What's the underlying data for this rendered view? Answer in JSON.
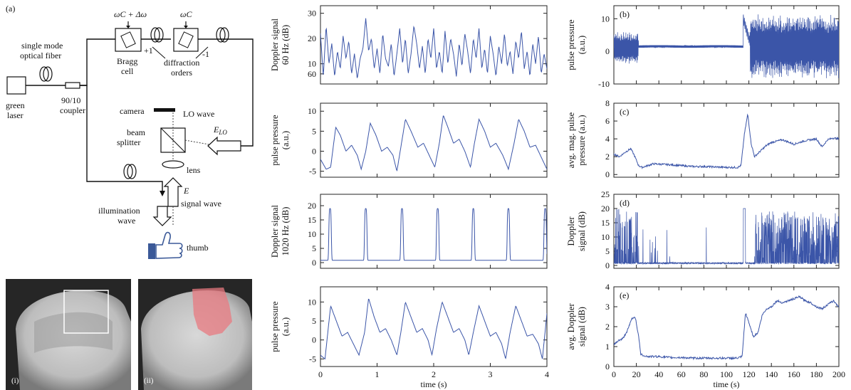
{
  "figure": {
    "diagram": {
      "label": "(a)",
      "components": {
        "fiber_label_1": "single mode",
        "fiber_label_2": "optical fiber",
        "laser_1": "green",
        "laser_2": "laser",
        "coupler_1": "90/10",
        "coupler_2": "coupler",
        "bragg_1": "Bragg",
        "bragg_2": "cell",
        "diff_1": "diffraction",
        "diff_2": "orders",
        "plus1": "+1",
        "minus1": "-1",
        "omega_shift": "ωC + Δω",
        "omega": "ωC",
        "camera": "camera",
        "lo_wave": "LO wave",
        "beam_1": "beam",
        "beam_2": "splitter",
        "e_lo": "ELO",
        "lens": "lens",
        "e": "E",
        "signal_wave": "signal wave",
        "illum_1": "illumination",
        "illum_2": "wave",
        "thumb": "thumb"
      }
    },
    "photos": [
      {
        "label": "(i)"
      },
      {
        "label": "(ii)"
      }
    ],
    "colors": {
      "trace": "#3b55a8",
      "roi_box": "#ffffff",
      "overlay": "#e87a80"
    }
  },
  "chart_data": [
    {
      "type": "line",
      "position": "middle column, row 1",
      "ylabel": "Doppler signal 60 Hz (dB)",
      "ylabel_lines": [
        "Doppler signal",
        "60 Hz (dB)"
      ],
      "xlim": [
        0,
        4
      ],
      "ylim": [
        2,
        33
      ],
      "yticks": [
        10,
        20,
        30
      ],
      "ytick_labels": [
        "10",
        "20",
        "30"
      ],
      "ytick_extra": [
        {
          "value": 6,
          "label": "60"
        }
      ],
      "x": [
        0,
        0.05,
        0.1,
        0.15,
        0.2,
        0.25,
        0.3,
        0.35,
        0.4,
        0.45,
        0.5,
        0.55,
        0.6,
        0.65,
        0.7,
        0.75,
        0.8,
        0.85,
        0.9,
        0.95,
        1.0,
        1.05,
        1.1,
        1.15,
        1.2,
        1.25,
        1.3,
        1.35,
        1.4,
        1.45,
        1.5,
        1.55,
        1.6,
        1.65,
        1.7,
        1.75,
        1.8,
        1.85,
        1.9,
        1.95,
        2.0,
        2.05,
        2.1,
        2.15,
        2.2,
        2.25,
        2.3,
        2.35,
        2.4,
        2.45,
        2.5,
        2.55,
        2.6,
        2.65,
        2.7,
        2.75,
        2.8,
        2.85,
        2.9,
        2.95,
        3.0,
        3.05,
        3.1,
        3.15,
        3.2,
        3.25,
        3.3,
        3.35,
        3.4,
        3.45,
        3.5,
        3.55,
        3.6,
        3.65,
        3.7,
        3.75,
        3.8,
        3.85,
        3.9,
        3.95,
        4.0
      ],
      "y": [
        22,
        5,
        25,
        10,
        18,
        5,
        15,
        8,
        21,
        12,
        19,
        6,
        14,
        4,
        12,
        16,
        28,
        15,
        20,
        8,
        16,
        6,
        22,
        12,
        9,
        18,
        5,
        14,
        24,
        10,
        20,
        6,
        14,
        25,
        18,
        8,
        17,
        6,
        20,
        12,
        24,
        8,
        15,
        6,
        23,
        10,
        20,
        14,
        5,
        18,
        9,
        22,
        15,
        6,
        20,
        12,
        24,
        8,
        16,
        6,
        21,
        14,
        5,
        17,
        10,
        22,
        9,
        15,
        6,
        19,
        12,
        23,
        8,
        15,
        5,
        18,
        10,
        21,
        6,
        14,
        8
      ],
      "xtick_labels_visible": false
    },
    {
      "type": "line",
      "position": "middle column, row 2",
      "ylabel": "pulse pressure (a.u.)",
      "ylabel_lines": [
        "pulse pressure",
        "(a.u.)"
      ],
      "xlim": [
        0,
        4
      ],
      "ylim": [
        -6.5,
        12
      ],
      "yticks": [
        -5,
        0,
        5,
        10
      ],
      "ytick_labels": [
        "-5",
        "0",
        "5",
        "10"
      ],
      "x": [
        0,
        0.1,
        0.18,
        0.27,
        0.35,
        0.45,
        0.55,
        0.65,
        0.72,
        0.8,
        0.88,
        0.98,
        1.08,
        1.18,
        1.28,
        1.35,
        1.42,
        1.5,
        1.6,
        1.72,
        1.82,
        1.92,
        2.02,
        2.1,
        2.17,
        2.25,
        2.35,
        2.45,
        2.55,
        2.65,
        2.72,
        2.8,
        2.9,
        3.0,
        3.1,
        3.22,
        3.32,
        3.42,
        3.5,
        3.6,
        3.7,
        3.8,
        3.9,
        4.0
      ],
      "y": [
        -2,
        -4.5,
        -4,
        6,
        4,
        0,
        1.5,
        -1,
        -4.5,
        0,
        7,
        4,
        0,
        1,
        -1,
        -5,
        1,
        8,
        5,
        1,
        2,
        -1,
        -4,
        2,
        9,
        6,
        2,
        3,
        0,
        -4,
        2,
        8,
        5,
        1,
        2,
        -1,
        -4.5,
        2,
        8,
        5,
        1,
        1.5,
        -1.5,
        -4.5
      ],
      "xtick_labels_visible": false
    },
    {
      "type": "line",
      "position": "middle column, row 3",
      "ylabel": "Doppler signal 1020 Hz (dB)",
      "ylabel_lines": [
        "Doppler signal",
        "1020 Hz (dB)"
      ],
      "xlim": [
        0,
        4
      ],
      "ylim": [
        -2,
        24
      ],
      "yticks": [
        0,
        5,
        10,
        15,
        20
      ],
      "ytick_labels": [
        "0",
        "5",
        "10",
        "15",
        "20"
      ],
      "peaks_x": [
        0.17,
        0.8,
        1.44,
        2.07,
        2.7,
        3.32,
        3.97
      ],
      "peak_value": 19,
      "baseline_value": 0.8,
      "xtick_labels_visible": false
    },
    {
      "type": "line",
      "position": "middle column, row 4",
      "ylabel": "pulse pressure (a.u.)",
      "ylabel_lines": [
        "pulse pressure",
        "(a.u.)"
      ],
      "xlim": [
        0,
        4
      ],
      "ylim": [
        -7,
        14
      ],
      "yticks": [
        -5,
        0,
        5,
        10
      ],
      "ytick_labels": [
        "-5",
        "0",
        "5",
        "10"
      ],
      "xticks": [
        0,
        1,
        2,
        3,
        4
      ],
      "xtick_labels": [
        "0",
        "1",
        "2",
        "3",
        "4"
      ],
      "xlabel": "time (s)",
      "x": [
        0,
        0.08,
        0.18,
        0.28,
        0.38,
        0.48,
        0.58,
        0.68,
        0.78,
        0.85,
        0.95,
        1.05,
        1.15,
        1.25,
        1.35,
        1.42,
        1.5,
        1.6,
        1.7,
        1.8,
        1.9,
        1.97,
        2.05,
        2.15,
        2.25,
        2.35,
        2.45,
        2.55,
        2.62,
        2.7,
        2.8,
        2.9,
        3.0,
        3.1,
        3.2,
        3.27,
        3.35,
        3.45,
        3.55,
        3.65,
        3.75,
        3.85,
        3.92,
        4.0
      ],
      "y": [
        -4,
        -5,
        9,
        5,
        1,
        2,
        -1,
        -4,
        2,
        11,
        6,
        2,
        3,
        0,
        -4,
        2,
        10,
        6,
        2,
        3,
        0,
        -4,
        3,
        10,
        6,
        2,
        3,
        0,
        -4,
        2,
        9,
        5,
        1,
        2,
        -1,
        -5,
        2,
        9,
        5,
        1,
        1.5,
        -1,
        -5,
        7
      ]
    },
    {
      "type": "line",
      "position": "right column, row 1",
      "panel_label": "(b)",
      "ylabel": "pulse pressure (a.u.)",
      "ylabel_lines": [
        "pulse pressure",
        "(a.u.)"
      ],
      "xlim": [
        0,
        200
      ],
      "ylim": [
        -10,
        14
      ],
      "yticks": [
        -10,
        0,
        10
      ],
      "ytick_labels": [
        "-10",
        "0",
        "10"
      ],
      "description": "noisy oscillation 0-22 s (about -3 to 5), flat about 1.5 from 22-115 s, spike to 10 at about 118 s, then large oscillation (about -8 to 11) until 200 s",
      "xtick_labels_visible": false
    },
    {
      "type": "line",
      "position": "right column, row 2",
      "panel_label": "(c)",
      "ylabel": "avg. mag. pulse pressure (a.u.)",
      "ylabel_lines": [
        "avg. mag. pulse",
        "pressure (a.u.)"
      ],
      "xlim": [
        0,
        200
      ],
      "ylim": [
        -0.3,
        8
      ],
      "yticks": [
        0,
        2,
        4,
        6,
        8
      ],
      "ytick_labels": [
        "0",
        "2",
        "4",
        "6",
        "8"
      ],
      "x": [
        0,
        5,
        10,
        15,
        18,
        22,
        25,
        35,
        50,
        60,
        70,
        80,
        90,
        100,
        110,
        113,
        116,
        119,
        122,
        125,
        130,
        135,
        140,
        150,
        160,
        170,
        180,
        185,
        190,
        195,
        200
      ],
      "y": [
        2.3,
        2.0,
        2.5,
        2.9,
        2.2,
        1.0,
        0.8,
        1.2,
        1.1,
        1.0,
        0.9,
        0.9,
        0.85,
        0.8,
        0.8,
        1.0,
        4.5,
        6.8,
        3.5,
        2.0,
        2.6,
        3.2,
        3.6,
        3.9,
        3.4,
        3.8,
        4.0,
        3.1,
        3.9,
        4.1,
        4.0
      ],
      "xtick_labels_visible": false
    },
    {
      "type": "line",
      "position": "right column, row 3",
      "panel_label": "(d)",
      "ylabel": "Doppler signal (dB)",
      "ylabel_lines": [
        "Doppler",
        "signal (dB)"
      ],
      "xlim": [
        0,
        200
      ],
      "ylim": [
        -1,
        25
      ],
      "yticks": [
        0,
        5,
        10,
        15,
        20,
        25
      ],
      "ytick_labels": [
        "0",
        "5",
        "10",
        "15",
        "20",
        "25"
      ],
      "description": "spiky bursts up to 20 dB from 0-22 s, near 0-1 baseline with isolated spikes from 22-115 s, spike to 20 at about 116 s, dense bursts up to about 19 dB from 125-200 s",
      "xtick_labels_visible": false
    },
    {
      "type": "line",
      "position": "right column, row 4",
      "panel_label": "(e)",
      "ylabel": "avg. Doppler signal (dB)",
      "ylabel_lines": [
        "avg. Doppler",
        "signal (dB)"
      ],
      "xlim": [
        0,
        200
      ],
      "ylim": [
        0,
        4
      ],
      "yticks": [
        0,
        1,
        2,
        3,
        4
      ],
      "ytick_labels": [
        "0",
        "1",
        "2",
        "3",
        "4"
      ],
      "xticks": [
        0,
        20,
        40,
        60,
        80,
        100,
        120,
        140,
        160,
        180,
        200
      ],
      "xtick_labels": [
        "0",
        "20",
        "40",
        "60",
        "80",
        "100",
        "120",
        "140",
        "160",
        "180",
        "200"
      ],
      "xlabel": "time (s)",
      "x": [
        0,
        4,
        8,
        12,
        16,
        19,
        22,
        24,
        30,
        40,
        50,
        60,
        70,
        80,
        90,
        100,
        110,
        114,
        117,
        120,
        124,
        128,
        132,
        136,
        140,
        145,
        150,
        160,
        165,
        170,
        175,
        180,
        185,
        190,
        195,
        200
      ],
      "y": [
        1.1,
        1.3,
        1.4,
        1.8,
        2.4,
        2.5,
        1.5,
        0.6,
        0.5,
        0.5,
        0.45,
        0.45,
        0.42,
        0.42,
        0.42,
        0.42,
        0.42,
        0.5,
        2.7,
        2.2,
        1.5,
        1.7,
        2.6,
        2.9,
        3.0,
        3.3,
        3.2,
        3.4,
        3.5,
        3.3,
        3.2,
        3.0,
        2.9,
        3.1,
        3.3,
        3.0
      ]
    }
  ]
}
